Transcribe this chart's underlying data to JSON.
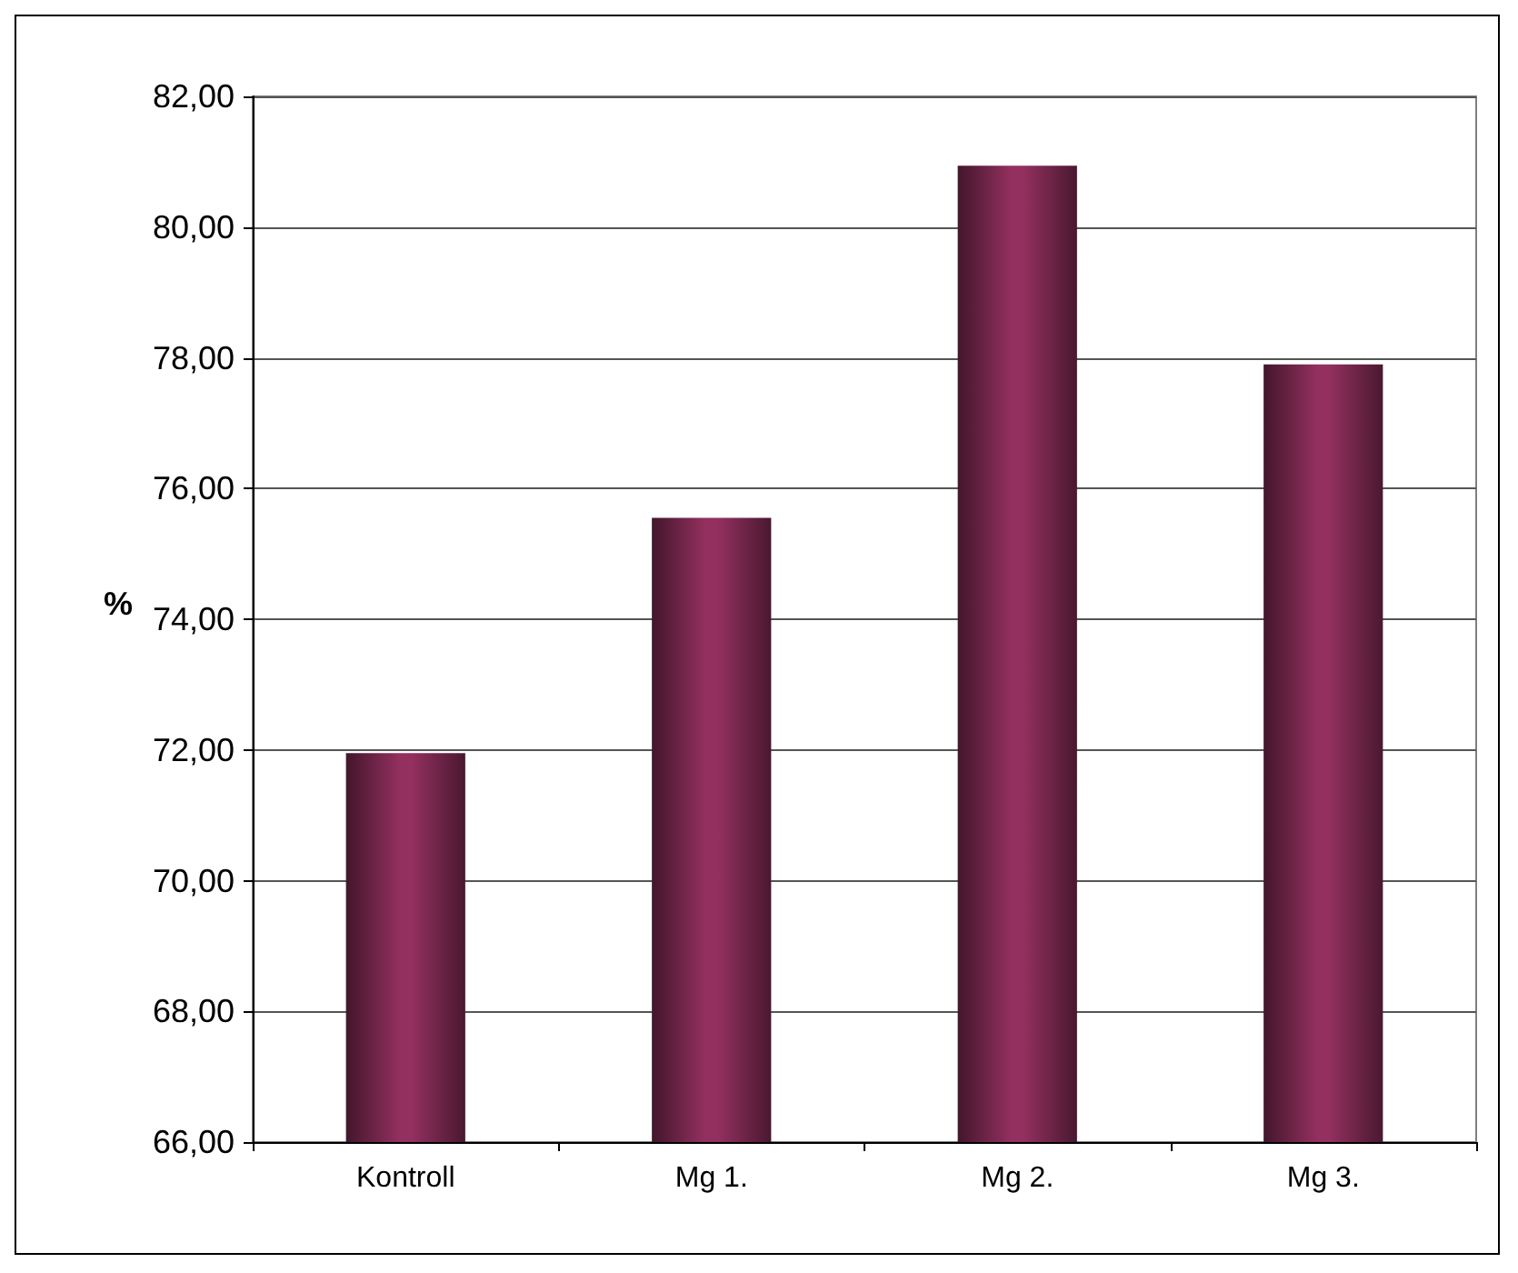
{
  "chart_data": {
    "type": "bar",
    "ylabel": "%",
    "categories": [
      "Kontroll",
      "Mg 1.",
      "Mg 2.",
      "Mg 3."
    ],
    "values": [
      71.95,
      75.55,
      80.94,
      77.9
    ],
    "color": "#93305f",
    "ylim": [
      66,
      82
    ],
    "yticks": [
      {
        "value": 66,
        "label": "66,00"
      },
      {
        "value": 68,
        "label": "68,00"
      },
      {
        "value": 70,
        "label": "70,00"
      },
      {
        "value": 72,
        "label": "72,00"
      },
      {
        "value": 74,
        "label": "74,00"
      },
      {
        "value": 76,
        "label": "76,00"
      },
      {
        "value": 78,
        "label": "78,00"
      },
      {
        "value": 80,
        "label": "80,00"
      },
      {
        "value": 82,
        "label": "82,00"
      }
    ],
    "grid": "y"
  }
}
